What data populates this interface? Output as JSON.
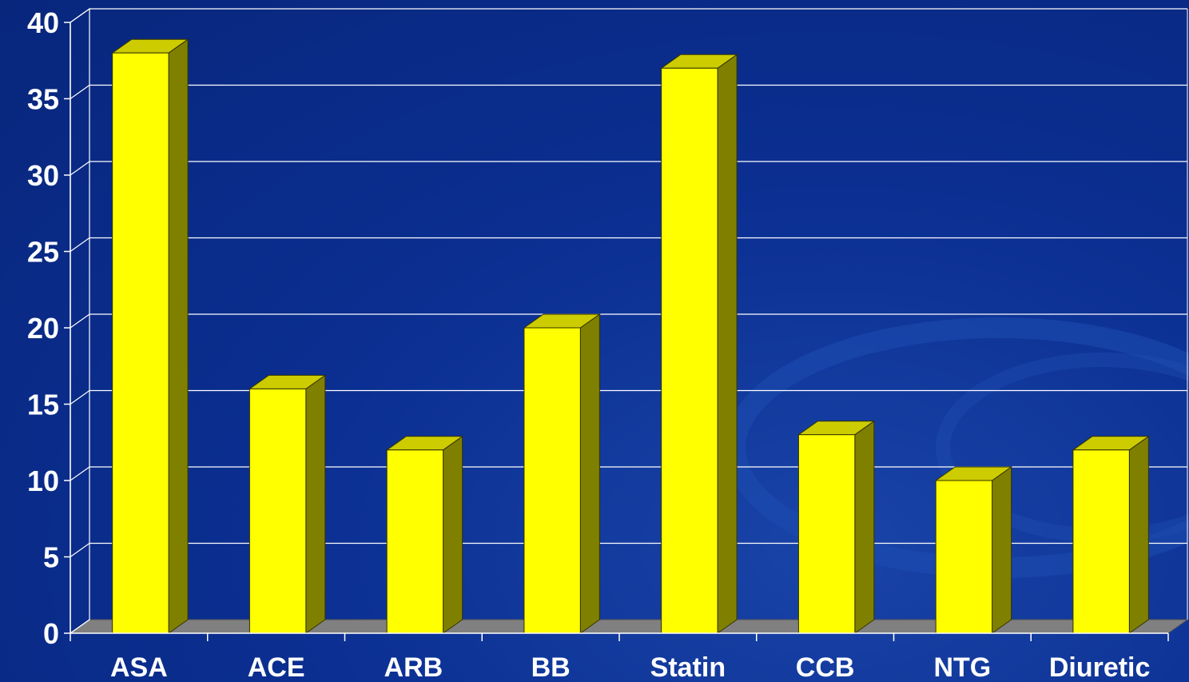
{
  "chart_data": {
    "type": "bar",
    "style": "3d",
    "categories": [
      "ASA",
      "ACE",
      "ARB",
      "BB",
      "Statin",
      "CCB",
      "NTG",
      "Diuretic"
    ],
    "values": [
      38,
      16,
      12,
      20,
      37,
      13,
      10,
      12
    ],
    "title": "",
    "xlabel": "",
    "ylabel": "",
    "ylim": [
      0,
      40
    ],
    "yticks": [
      0,
      5,
      10,
      15,
      20,
      25,
      30,
      35,
      40
    ],
    "grid": true,
    "legend": "none",
    "colors": {
      "background": "#0b2f92",
      "bar_front": "#ffff00",
      "bar_top": "#cccc00",
      "bar_side": "#808000",
      "bar_outline": "#333300",
      "gridline": "#ffffff",
      "floor": "#808080",
      "text": "#ffffff"
    }
  }
}
